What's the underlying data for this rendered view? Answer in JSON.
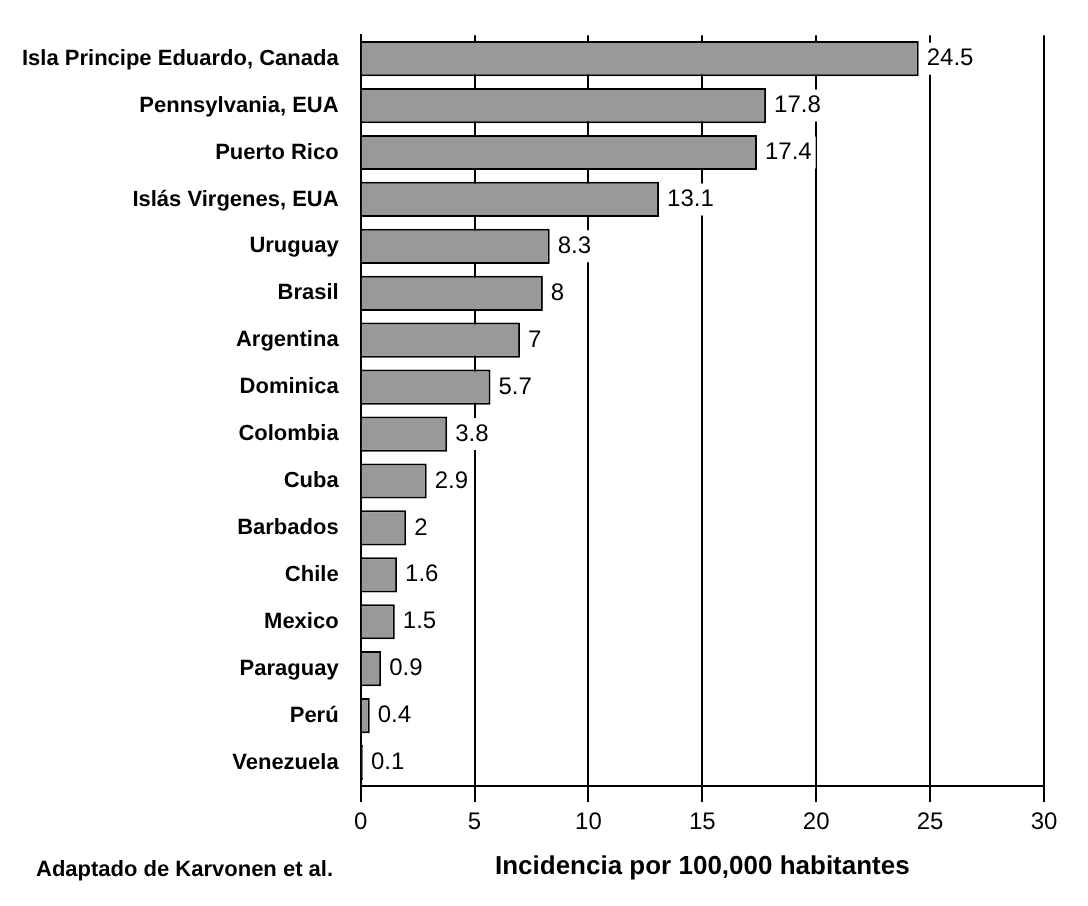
{
  "chart_data": {
    "type": "bar",
    "orientation": "horizontal",
    "xlabel": "Incidencia por 100,000 habitantes",
    "categories": [
      "Isla Principe Eduardo, Canada",
      "Pennsylvania, EUA",
      "Puerto Rico",
      "Islás Virgenes, EUA",
      "Uruguay",
      "Brasil",
      "Argentina",
      "Dominica",
      "Colombia",
      "Cuba",
      "Barbados",
      "Chile",
      "Mexico",
      "Paraguay",
      "Perú",
      "Venezuela"
    ],
    "values": [
      24.5,
      17.8,
      17.4,
      13.1,
      8.3,
      8,
      7,
      5.7,
      3.8,
      2.9,
      2,
      1.6,
      1.5,
      0.9,
      0.4,
      0.1
    ],
    "color": "#999999",
    "xlim": [
      0,
      30
    ],
    "xticks": [
      0,
      5,
      10,
      15,
      20,
      25,
      30
    ],
    "grid": "x",
    "data_labels": true,
    "annotations": [
      "Adaptado de Karvonen et al."
    ]
  }
}
